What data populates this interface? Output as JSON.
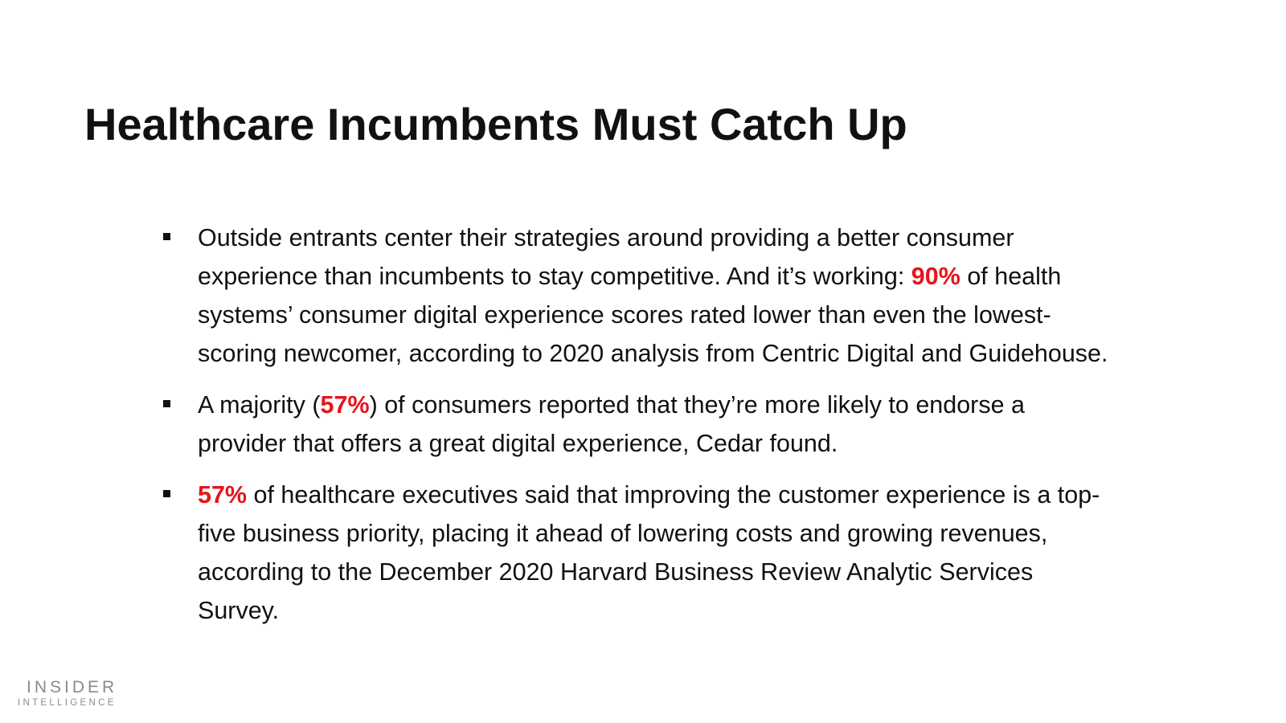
{
  "slide": {
    "title": "Healthcare Incumbents Must Catch Up",
    "highlight_color": "#e8141c",
    "bullets": [
      {
        "text_before": "Outside entrants center their strategies around providing a better consumer experience than incumbents to stay competitive. And it’s working: ",
        "highlight": "90%",
        "text_after": " of health systems’ consumer digital experience scores rated lower than even the lowest-scoring newcomer, according to 2020 analysis from Centric Digital and Guidehouse."
      },
      {
        "text_before": "A majority (",
        "highlight": "57%",
        "text_after": ") of consumers reported that they’re more likely to endorse a provider that offers a great digital experience, Cedar found."
      },
      {
        "text_before": "",
        "highlight": "57%",
        "text_after": " of healthcare executives said that improving the customer experience is a top-five business priority, placing it ahead of lowering costs and growing revenues, according to the December 2020 Harvard Business Review Analytic Services Survey."
      }
    ]
  },
  "branding": {
    "line1": "INSIDER",
    "line2": "INTELLIGENCE"
  }
}
